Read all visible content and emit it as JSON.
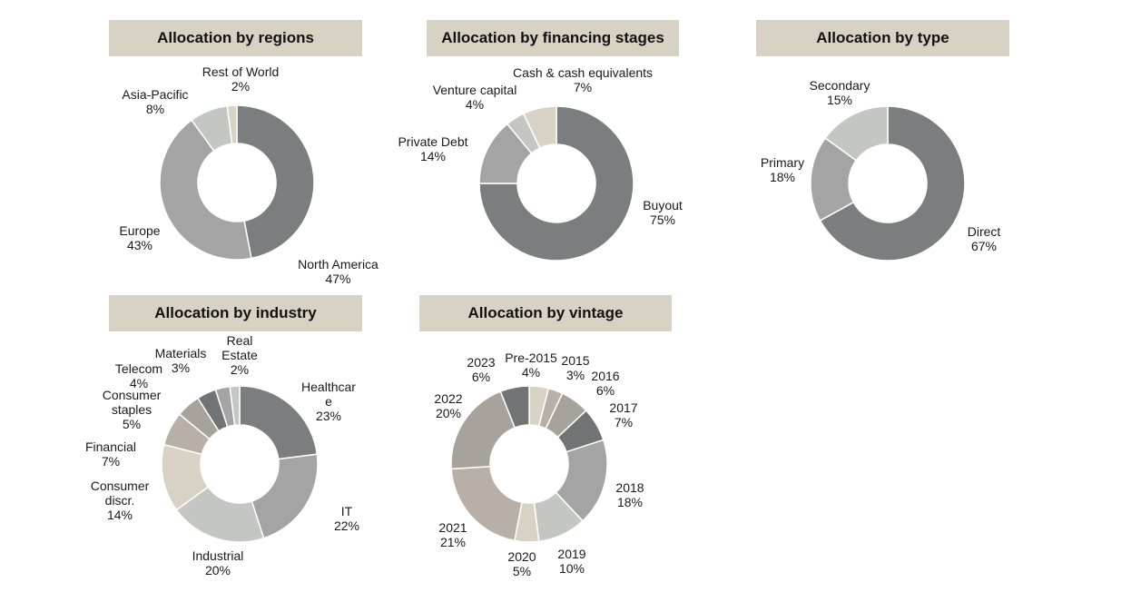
{
  "chart_data": [
    {
      "type": "pie",
      "title": "Allocation by regions",
      "slices": [
        {
          "label": "North America",
          "value": 47,
          "pct": "47%",
          "color": "#7b7e7e"
        },
        {
          "label": "Europe",
          "value": 43,
          "pct": "43%",
          "color": "#a4a4a4"
        },
        {
          "label": "Asia-Pacific",
          "value": 8,
          "pct": "8%",
          "color": "#c4c6c3"
        },
        {
          "label": "Rest of World",
          "value": 2,
          "pct": "2%",
          "color": "#d8d2c4"
        }
      ]
    },
    {
      "type": "pie",
      "title": "Allocation by financing stages",
      "slices": [
        {
          "label": "Buyout",
          "value": 75,
          "pct": "75%",
          "color": "#7b7e7e"
        },
        {
          "label": "Private Debt",
          "value": 14,
          "pct": "14%",
          "color": "#a4a4a4"
        },
        {
          "label": "Venture capital",
          "value": 4,
          "pct": "4%",
          "color": "#c4c6c3"
        },
        {
          "label": "Cash & cash equivalents",
          "value": 7,
          "pct": "7%",
          "color": "#d8d2c4"
        }
      ]
    },
    {
      "type": "pie",
      "title": "Allocation by type",
      "slices": [
        {
          "label": "Direct",
          "value": 67,
          "pct": "67%",
          "color": "#7b7e7e"
        },
        {
          "label": "Primary",
          "value": 18,
          "pct": "18%",
          "color": "#a4a4a4"
        },
        {
          "label": "Secondary",
          "value": 15,
          "pct": "15%",
          "color": "#c4c6c3"
        }
      ]
    },
    {
      "type": "pie",
      "title": "Allocation by industry",
      "slices": [
        {
          "label": "Healthcar\ne",
          "value": 23,
          "pct": "23%",
          "color": "#7b7e7e"
        },
        {
          "label": "IT",
          "value": 22,
          "pct": "22%",
          "color": "#a4a4a4"
        },
        {
          "label": "Industrial",
          "value": 20,
          "pct": "20%",
          "color": "#c4c6c3"
        },
        {
          "label": "Consumer\ndiscr.",
          "value": 14,
          "pct": "14%",
          "color": "#d8d2c4"
        },
        {
          "label": "Financial",
          "value": 7,
          "pct": "7%",
          "color": "#b8b0a8"
        },
        {
          "label": "Consumer\nstaples",
          "value": 5,
          "pct": "5%",
          "color": "#a8a29c"
        },
        {
          "label": "Telecom",
          "value": 4,
          "pct": "4%",
          "color": "#707474"
        },
        {
          "label": "Materials",
          "value": 3,
          "pct": "3%",
          "color": "#a4a4a4"
        },
        {
          "label": "Real\nEstate",
          "value": 2,
          "pct": "2%",
          "color": "#c4c6c3"
        }
      ]
    },
    {
      "type": "pie",
      "title": "Allocation by vintage",
      "slices": [
        {
          "label": "Pre-2015",
          "value": 4,
          "pct": "4%",
          "color": "#d8d2c4"
        },
        {
          "label": "2015",
          "value": 3,
          "pct": "3%",
          "color": "#b8b0a8"
        },
        {
          "label": "2016",
          "value": 6,
          "pct": "6%",
          "color": "#a8a29c"
        },
        {
          "label": "2017",
          "value": 7,
          "pct": "7%",
          "color": "#707474"
        },
        {
          "label": "2018",
          "value": 18,
          "pct": "18%",
          "color": "#a4a4a4"
        },
        {
          "label": "2019",
          "value": 10,
          "pct": "10%",
          "color": "#c4c6c3"
        },
        {
          "label": "2020",
          "value": 5,
          "pct": "5%",
          "color": "#d8d2c4"
        },
        {
          "label": "2021",
          "value": 21,
          "pct": "21%",
          "color": "#b8b0a8"
        },
        {
          "label": "2022",
          "value": 20,
          "pct": "20%",
          "color": "#a8a29c"
        },
        {
          "label": "2023",
          "value": 6,
          "pct": "6%",
          "color": "#707474"
        }
      ]
    }
  ]
}
